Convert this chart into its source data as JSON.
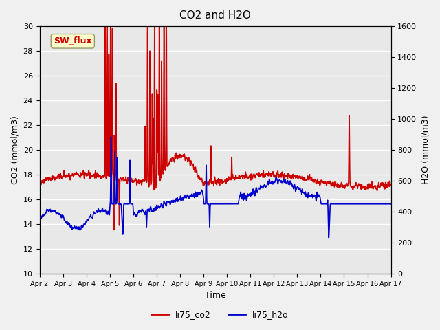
{
  "title": "CO2 and H2O",
  "xlabel": "Time",
  "ylabel_left": "CO2 (mmol/m3)",
  "ylabel_right": "H2O (mmol/m3)",
  "ylim_left": [
    10,
    30
  ],
  "ylim_right": [
    0,
    1600
  ],
  "yticks_left": [
    10,
    12,
    14,
    16,
    18,
    20,
    22,
    24,
    26,
    28,
    30
  ],
  "yticks_right": [
    0,
    200,
    400,
    600,
    800,
    1000,
    1200,
    1400,
    1600
  ],
  "xtick_labels": [
    "Apr 2",
    "Apr 3",
    "Apr 4",
    "Apr 5",
    "Apr 6",
    "Apr 7",
    "Apr 8",
    "Apr 9",
    "Apr 10",
    "Apr 11",
    "Apr 12",
    "Apr 13",
    "Apr 14",
    "Apr 15",
    "Apr 16",
    "Apr 17"
  ],
  "co2_color": "#cc0000",
  "h2o_color": "#0000cc",
  "legend_label_co2": "li75_co2",
  "legend_label_h2o": "li75_h2o",
  "annotation_text": "SW_flux",
  "annotation_color": "#cc0000",
  "annotation_bg": "#ffffcc",
  "background_color": "#e8e8e8",
  "grid_color": "#ffffff",
  "linewidth": 1.2
}
